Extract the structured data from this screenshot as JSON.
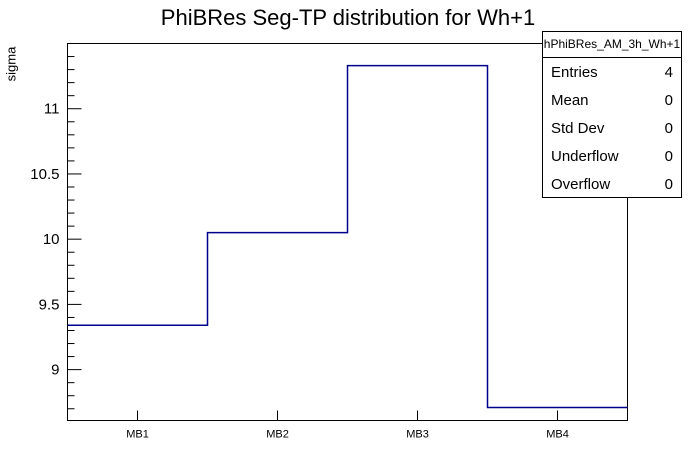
{
  "title": "PhiBRes Seg-TP distribution for Wh+1",
  "y_axis": {
    "title": "sigma"
  },
  "chart_data": {
    "type": "step-histogram",
    "title": "PhiBRes Seg-TP distribution for Wh+1",
    "xlabel": "",
    "ylabel": "sigma",
    "categories": [
      "MB1",
      "MB2",
      "MB3",
      "MB4"
    ],
    "values": [
      9.34,
      10.05,
      11.33,
      8.71
    ],
    "ylim": [
      8.61,
      11.5
    ],
    "yticks": [
      9,
      9.5,
      10,
      10.5,
      11
    ],
    "ytick_labels": [
      "9",
      "9.5",
      "10",
      "10.5",
      "11"
    ],
    "y_minor_step": 0.1,
    "line_color": "#00008c",
    "frame_color": "#000000",
    "grid": false,
    "legend_position": "none"
  },
  "stats_box": {
    "title": "hPhiBRes_AM_3h_Wh+1",
    "rows": [
      {
        "label": "Entries",
        "value": "4"
      },
      {
        "label": "Mean",
        "value": "0"
      },
      {
        "label": "Std Dev",
        "value": "0"
      },
      {
        "label": "Underflow",
        "value": "0"
      },
      {
        "label": "Overflow",
        "value": "0"
      }
    ]
  }
}
